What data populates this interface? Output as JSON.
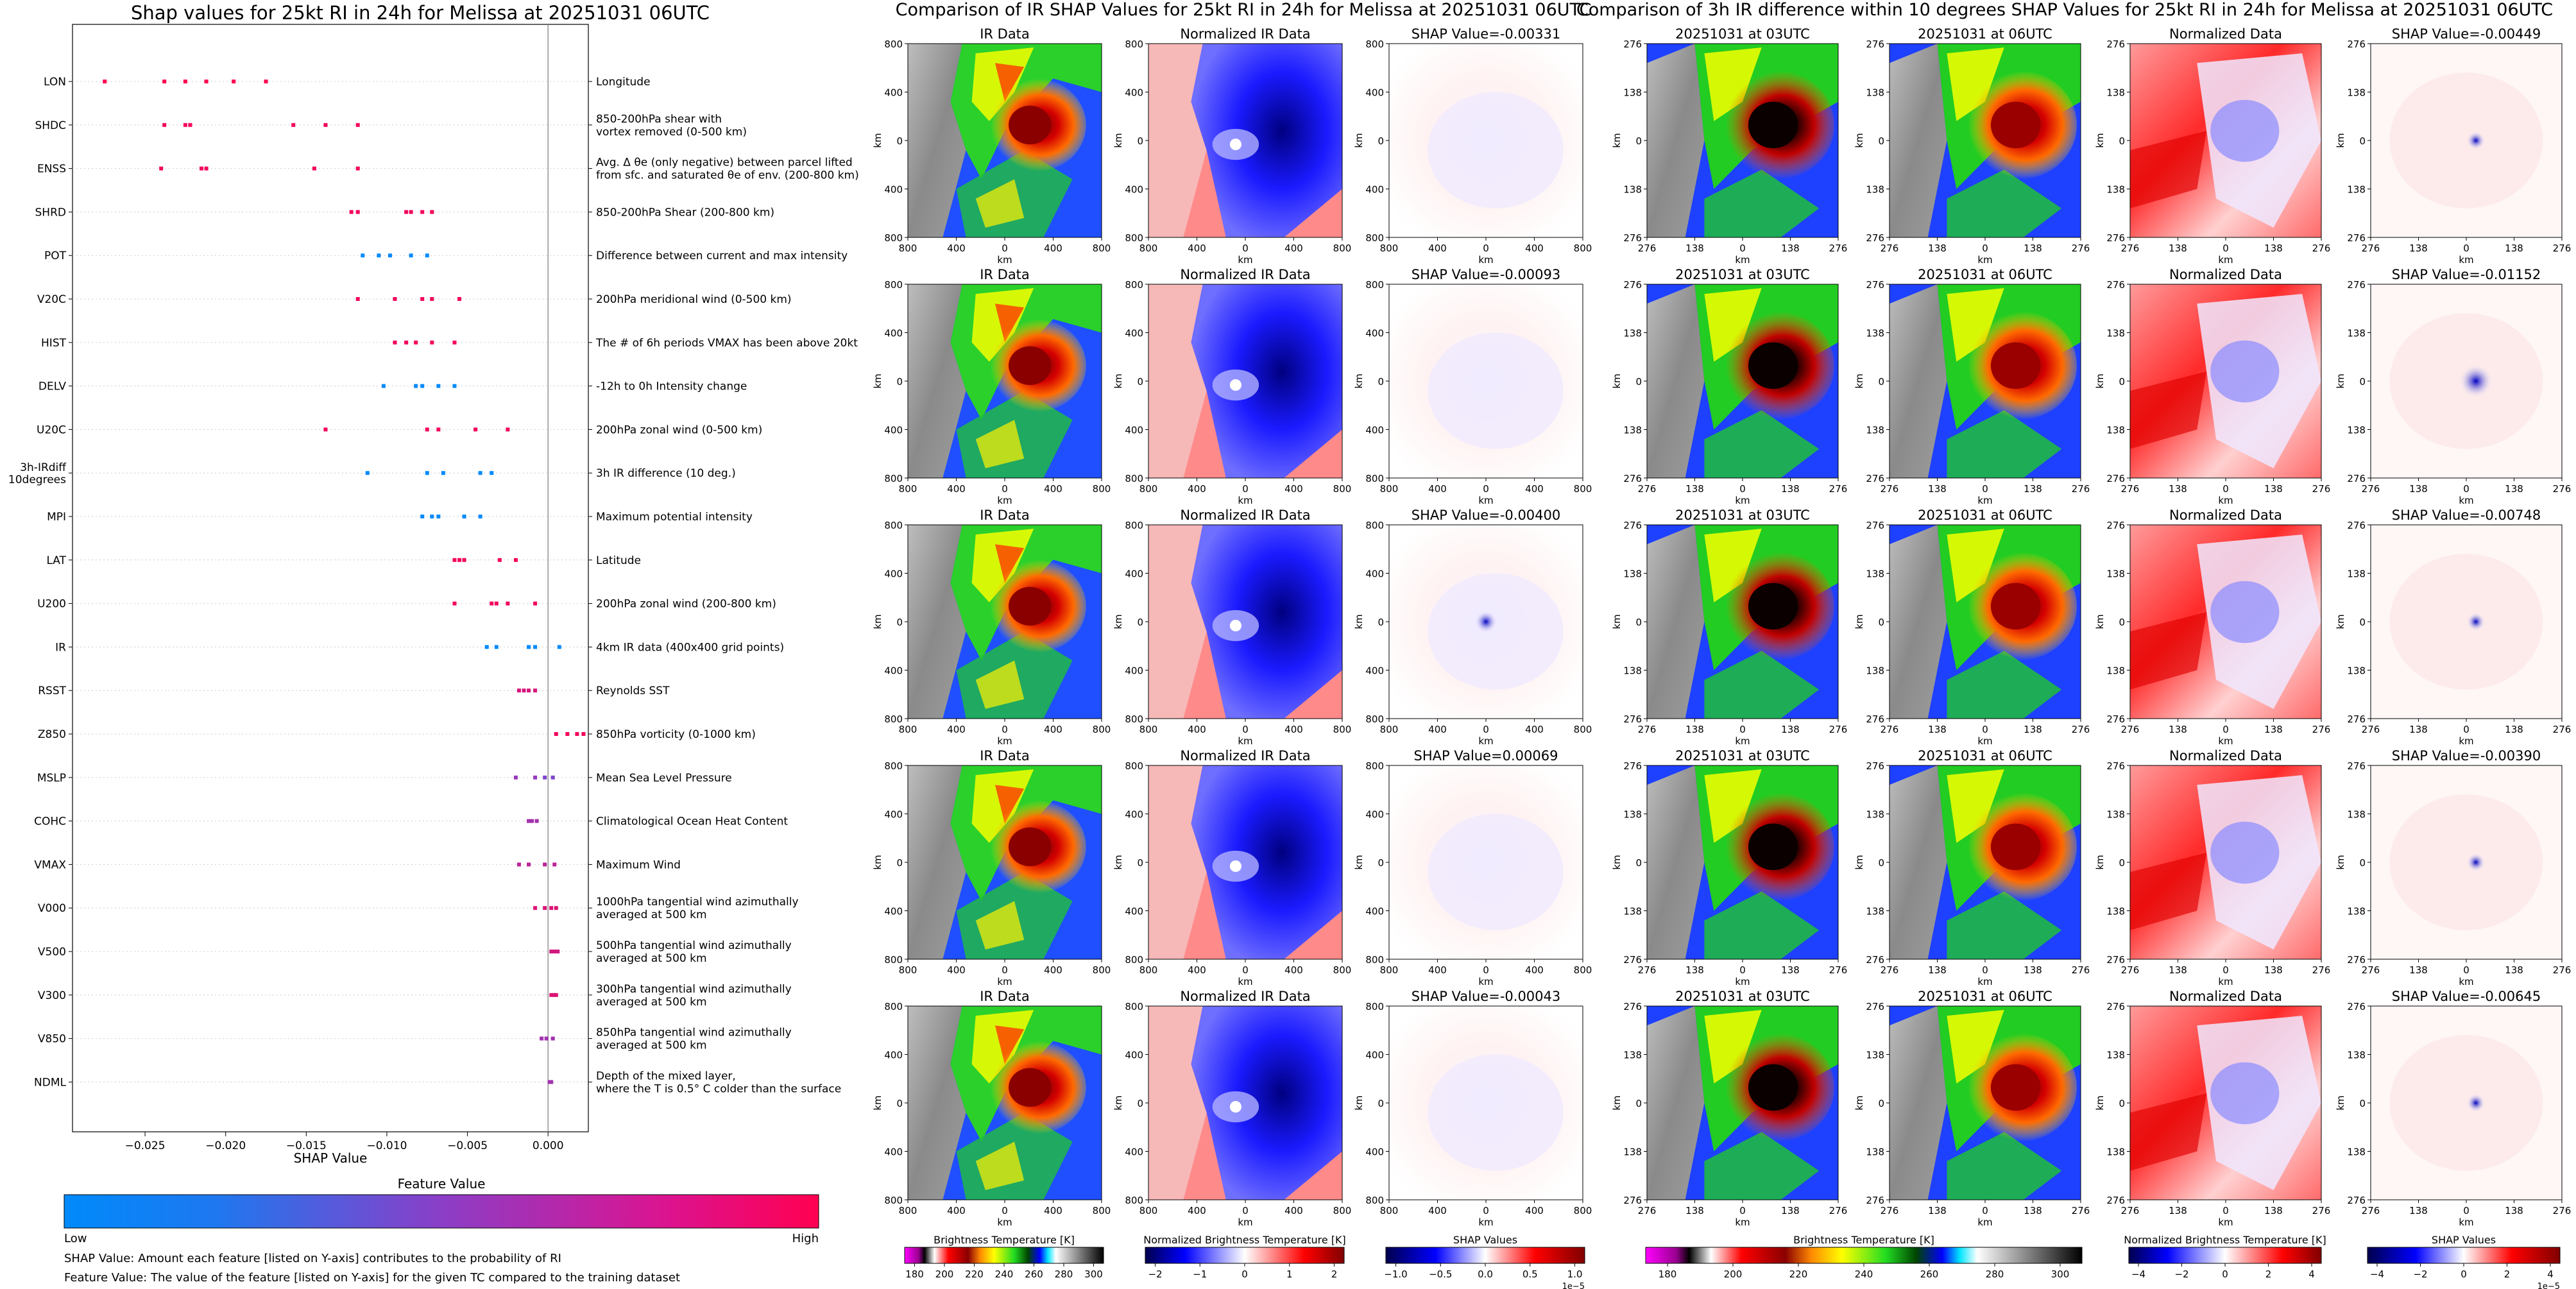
{
  "shap": {
    "title": "Shap values for 25kt RI in 24h for Melissa at 20251031 06UTC",
    "xlabel": "SHAP Value",
    "xticks": [
      "−0.025",
      "−0.020",
      "−0.015",
      "−0.010",
      "−0.005",
      "0.000"
    ],
    "colorbar_title": "Feature Value",
    "colorbar_low": "Low",
    "colorbar_high": "High",
    "note1": "SHAP Value: Amount each feature [listed on Y-axis] contributes to the probability of RI",
    "note2": "Feature Value: The value of the feature [listed on Y-axis] for the given TC compared to the training dataset"
  },
  "ir_panel": {
    "title": "Comparison of IR SHAP Values for 25kt RI in 24h for Melissa at 20251031 06UTC",
    "col_titles": [
      "IR Data",
      "Normalized IR Data"
    ],
    "shap_titles": [
      "SHAP Value=-0.00331",
      "SHAP Value=-0.00093",
      "SHAP Value=-0.00400",
      "SHAP Value=0.00069",
      "SHAP Value=-0.00043"
    ],
    "yticks": [
      "800",
      "400",
      "0",
      "400",
      "800"
    ],
    "xticks": [
      "800",
      "400",
      "0",
      "400",
      "800"
    ],
    "axis_label": "km",
    "cbar1_label": "Brightness Temperature [K]",
    "cbar1_ticks": [
      "180",
      "200",
      "220",
      "240",
      "260",
      "280",
      "300"
    ],
    "cbar2_label": "Normalized Brightness Temperature [K]",
    "cbar2_ticks": [
      "−2",
      "−1",
      "0",
      "1",
      "2"
    ],
    "cbar3_label": "SHAP Values",
    "cbar3_ticks": [
      "−1.0",
      "−0.5",
      "0.0",
      "0.5",
      "1.0"
    ],
    "cbar3_exp": "1e−5"
  },
  "diff_panel": {
    "title": "Comparison of 3h IR difference within 10 degrees SHAP Values for 25kt RI in 24h for Melissa at 20251031 06UTC",
    "col_titles": [
      "20251031 at 03UTC",
      "20251031 at 06UTC",
      "Normalized Data"
    ],
    "shap_titles": [
      "SHAP Value=-0.00449",
      "SHAP Value=-0.01152",
      "SHAP Value=-0.00748",
      "SHAP Value=-0.00390",
      "SHAP Value=-0.00645"
    ],
    "yticks": [
      "276",
      "138",
      "0",
      "138",
      "276"
    ],
    "xticks": [
      "276",
      "138",
      "0",
      "138",
      "276"
    ],
    "axis_label": "km",
    "cbar1_label": "Brightness Temperature [K]",
    "cbar1_ticks": [
      "180",
      "200",
      "220",
      "240",
      "260",
      "280",
      "300"
    ],
    "cbar2_label": "Normalized Brightness Temperature [K]",
    "cbar2_ticks": [
      "−4",
      "−2",
      "0",
      "2",
      "4"
    ],
    "cbar3_label": "SHAP Values",
    "cbar3_ticks": [
      "−4",
      "−2",
      "0",
      "2",
      "4"
    ],
    "cbar3_exp": "1e−5"
  },
  "chart_data": {
    "type": "scatter",
    "title": "Shap values for 25kt RI in 24h for Melissa at 20251031 06UTC",
    "xlabel": "SHAP Value",
    "xlim": [
      -0.0295,
      0.0025
    ],
    "grid": false,
    "features": [
      {
        "name": "LON",
        "desc": "Longitude",
        "values": [
          -0.0275,
          -0.0238,
          -0.0225,
          -0.0212,
          -0.0195,
          -0.0175
        ],
        "fv": [
          1,
          1,
          1,
          1,
          1,
          1
        ]
      },
      {
        "name": "SHDC",
        "desc": "850-200hPa shear with\nvortex removed (0-500 km)",
        "values": [
          -0.0238,
          -0.0225,
          -0.0222,
          -0.0158,
          -0.0138,
          -0.0118
        ],
        "fv": [
          0.95,
          0.95,
          0.95,
          0.95,
          0.95,
          0.95
        ]
      },
      {
        "name": "ENSS",
        "desc": "Avg. Δ θe (only negative) between parcel lifted\nfrom sfc. and saturated θe of env. (200-800 km)",
        "values": [
          -0.024,
          -0.0215,
          -0.0212,
          -0.0145,
          -0.0118
        ],
        "fv": [
          0.95,
          0.95,
          0.95,
          0.95,
          0.95
        ]
      },
      {
        "name": "SHRD",
        "desc": "850-200hPa Shear (200-800 km)",
        "values": [
          -0.0122,
          -0.0118,
          -0.0088,
          -0.0085,
          -0.0078,
          -0.0072
        ],
        "fv": [
          0.95,
          0.95,
          0.95,
          0.95,
          0.95,
          0.95
        ]
      },
      {
        "name": "POT",
        "desc": "Difference between current and max intensity",
        "values": [
          -0.0115,
          -0.0105,
          -0.0098,
          -0.0085,
          -0.0075
        ],
        "fv": [
          0,
          0,
          0,
          0,
          0
        ]
      },
      {
        "name": "V20C",
        "desc": "200hPa meridional wind (0-500 km)",
        "values": [
          -0.0118,
          -0.0095,
          -0.0078,
          -0.0072,
          -0.0055
        ],
        "fv": [
          0.95,
          0.95,
          0.95,
          0.95,
          0.95
        ]
      },
      {
        "name": "HIST",
        "desc": "The # of 6h periods VMAX has been above 20kt",
        "values": [
          -0.0095,
          -0.0088,
          -0.0082,
          -0.0072,
          -0.0058
        ],
        "fv": [
          0.95,
          0.95,
          0.95,
          0.95,
          0.95
        ]
      },
      {
        "name": "DELV",
        "desc": "-12h to 0h Intensity change",
        "values": [
          -0.0102,
          -0.0082,
          -0.0078,
          -0.0068,
          -0.0058
        ],
        "fv": [
          0,
          0,
          0,
          0,
          0
        ]
      },
      {
        "name": "U20C",
        "desc": "200hPa zonal wind (0-500 km)",
        "values": [
          -0.0138,
          -0.0075,
          -0.0068,
          -0.0045,
          -0.0025
        ],
        "fv": [
          0.95,
          0.95,
          0.95,
          0.95,
          0.95
        ]
      },
      {
        "name": "3h-IRdiff\n10degrees",
        "desc": "3h IR difference (10 deg.)",
        "values": [
          -0.0112,
          -0.0075,
          -0.0065,
          -0.0042,
          -0.0035
        ],
        "fv": [
          0,
          0,
          0,
          0,
          0
        ]
      },
      {
        "name": "MPI",
        "desc": "Maximum potential intensity",
        "values": [
          -0.0078,
          -0.0072,
          -0.0068,
          -0.0052,
          -0.0042
        ],
        "fv": [
          0,
          0,
          0,
          0,
          0
        ]
      },
      {
        "name": "LAT",
        "desc": "Latitude",
        "values": [
          -0.0058,
          -0.0055,
          -0.0052,
          -0.003,
          -0.002
        ],
        "fv": [
          0.95,
          0.95,
          0.95,
          0.95,
          0.95
        ]
      },
      {
        "name": "U200",
        "desc": "200hPa zonal wind (200-800 km)",
        "values": [
          -0.0058,
          -0.0035,
          -0.0032,
          -0.0025,
          -0.0008
        ],
        "fv": [
          0.95,
          0.95,
          0.95,
          0.95,
          0.95
        ]
      },
      {
        "name": "IR",
        "desc": "4km IR data (400x400 grid points)",
        "values": [
          -0.0038,
          -0.0032,
          -0.0012,
          -0.0008,
          0.0007
        ],
        "fv": [
          0,
          0,
          0,
          0,
          0
        ]
      },
      {
        "name": "RSST",
        "desc": "Reynolds SST",
        "values": [
          -0.0018,
          -0.0015,
          -0.0012,
          -0.0008
        ],
        "fv": [
          0.82,
          0.82,
          0.82,
          0.82
        ]
      },
      {
        "name": "Z850",
        "desc": "850hPa vorticity (0-1000 km)",
        "values": [
          0.0005,
          0.0012,
          0.0018,
          0.0022
        ],
        "fv": [
          0.95,
          0.95,
          0.95,
          0.95
        ]
      },
      {
        "name": "MSLP",
        "desc": "Mean Sea Level Pressure",
        "values": [
          -0.002,
          -0.0008,
          -0.0002,
          0.0003
        ],
        "fv": [
          0.55,
          0.55,
          0.45,
          0.45
        ]
      },
      {
        "name": "COHC",
        "desc": "Climatological Ocean Heat Content",
        "values": [
          -0.0012,
          -0.001,
          -0.0007
        ],
        "fv": [
          0.6,
          0.6,
          0.6
        ]
      },
      {
        "name": "VMAX",
        "desc": "Maximum Wind",
        "values": [
          -0.0018,
          -0.0012,
          -0.0002,
          0.0004
        ],
        "fv": [
          0.7,
          0.7,
          0.7,
          0.7
        ]
      },
      {
        "name": "V000",
        "desc": "1000hPa tangential wind azimuthally\naveraged at 500 km",
        "values": [
          -0.0008,
          -0.0002,
          0.0002,
          0.0005
        ],
        "fv": [
          0.85,
          0.85,
          0.85,
          0.85
        ]
      },
      {
        "name": "V500",
        "desc": "500hPa tangential wind azimuthally\naveraged at 500 km",
        "values": [
          0.0002,
          0.0004,
          0.0006
        ],
        "fv": [
          0.8,
          0.8,
          0.8
        ]
      },
      {
        "name": "V300",
        "desc": "300hPa tangential wind azimuthally\naveraged at 500 km",
        "values": [
          0.0002,
          0.0004,
          0.0005
        ],
        "fv": [
          0.85,
          0.85,
          0.85
        ]
      },
      {
        "name": "V850",
        "desc": "850hPa tangential wind azimuthally\naveraged at 500 km",
        "values": [
          -0.0004,
          -0.0001,
          0.0003
        ],
        "fv": [
          0.6,
          0.6,
          0.6
        ]
      },
      {
        "name": "NDML",
        "desc": "Depth of the mixed layer,\nwhere the T is 0.5° C colder than the surface",
        "values": [
          0.0001,
          0.0002
        ],
        "fv": [
          0.6,
          0.6
        ]
      }
    ]
  }
}
